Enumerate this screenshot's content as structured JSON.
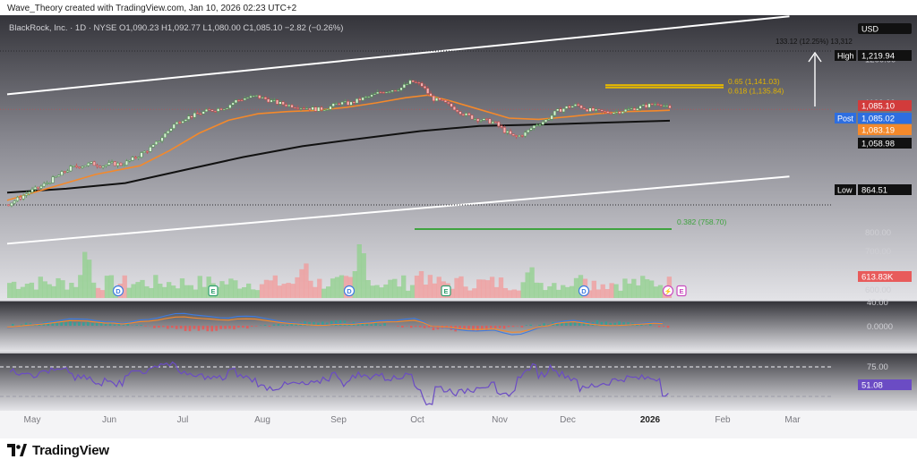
{
  "header": {
    "attribution": "Wave_Theory created with TradingView.com, Jan 10, 2026 02:23 UTC+2"
  },
  "legend": {
    "text": "BlackRock, Inc. · 1D · NYSE  O1,090.23  H1,092.77  L1,080.00  C1,085.10  −2.82 (−0.26%)"
  },
  "currency_label": "USD",
  "brand": {
    "wordmark": "TradingView"
  },
  "colors": {
    "bullish": "#26a69a",
    "bearish": "#ef5350",
    "ma_fast": "#f4892b",
    "ma_slow": "#111111",
    "macd_line": "#3e7be0",
    "signal_line": "#f4892b",
    "rsi": "#6b4cc4",
    "fib_618": "#e5b800",
    "fib_382": "#3fa33f",
    "channel": "#ffffff"
  },
  "chart_data": {
    "type": "candlestick",
    "symbol": "BlackRock, Inc.",
    "interval": "1D",
    "exchange": "NYSE",
    "ohlc_last": {
      "open": 1090.23,
      "high": 1092.77,
      "low": 1080.0,
      "close": 1085.1,
      "change": -2.82,
      "change_pct": -0.26
    },
    "x_ticks": [
      "May",
      "Jun",
      "Jul",
      "Aug",
      "Sep",
      "Oct",
      "Nov",
      "Dec",
      "2026",
      "Feb",
      "Mar"
    ],
    "price_series": {
      "close": [
        [
          0,
          865
        ],
        [
          8,
          880
        ],
        [
          15,
          895
        ],
        [
          22,
          905
        ],
        [
          29,
          920
        ],
        [
          36,
          935
        ],
        [
          43,
          950
        ],
        [
          50,
          955
        ],
        [
          57,
          960
        ],
        [
          64,
          955
        ],
        [
          71,
          960
        ],
        [
          78,
          958
        ],
        [
          85,
          970
        ],
        [
          92,
          985
        ],
        [
          99,
          1000
        ],
        [
          106,
          1025
        ],
        [
          113,
          1050
        ],
        [
          120,
          1065
        ],
        [
          127,
          1072
        ],
        [
          134,
          1080
        ],
        [
          141,
          1085
        ],
        [
          148,
          1090
        ],
        [
          155,
          1105
        ],
        [
          162,
          1112
        ],
        [
          169,
          1115
        ],
        [
          176,
          1108
        ],
        [
          183,
          1100
        ],
        [
          190,
          1095
        ],
        [
          197,
          1092
        ],
        [
          204,
          1088
        ],
        [
          211,
          1085
        ],
        [
          218,
          1090
        ],
        [
          225,
          1100
        ],
        [
          232,
          1098
        ],
        [
          239,
          1108
        ],
        [
          246,
          1115
        ],
        [
          253,
          1125
        ],
        [
          260,
          1130
        ],
        [
          267,
          1135
        ],
        [
          274,
          1150
        ],
        [
          281,
          1140
        ],
        [
          288,
          1110
        ],
        [
          295,
          1102
        ],
        [
          302,
          1090
        ],
        [
          309,
          1075
        ],
        [
          316,
          1065
        ],
        [
          323,
          1060
        ],
        [
          330,
          1055
        ],
        [
          337,
          1035
        ],
        [
          344,
          1020
        ],
        [
          351,
          1030
        ],
        [
          358,
          1050
        ],
        [
          365,
          1060
        ],
        [
          372,
          1080
        ],
        [
          379,
          1090
        ],
        [
          386,
          1095
        ],
        [
          393,
          1085
        ],
        [
          400,
          1080
        ],
        [
          407,
          1078
        ],
        [
          414,
          1080
        ],
        [
          421,
          1085
        ],
        [
          428,
          1090
        ],
        [
          435,
          1095
        ],
        [
          442,
          1100
        ],
        [
          449,
          1085.1
        ]
      ],
      "ma_fast": [
        [
          0,
          875
        ],
        [
          30,
          905
        ],
        [
          60,
          935
        ],
        [
          90,
          955
        ],
        [
          110,
          990
        ],
        [
          130,
          1030
        ],
        [
          150,
          1060
        ],
        [
          170,
          1075
        ],
        [
          190,
          1080
        ],
        [
          210,
          1083
        ],
        [
          230,
          1090
        ],
        [
          250,
          1100
        ],
        [
          270,
          1112
        ],
        [
          285,
          1118
        ],
        [
          300,
          1105
        ],
        [
          320,
          1085
        ],
        [
          340,
          1065
        ],
        [
          360,
          1062
        ],
        [
          380,
          1068
        ],
        [
          400,
          1075
        ],
        [
          420,
          1080
        ],
        [
          440,
          1082
        ],
        [
          449,
          1083.19
        ]
      ],
      "ma_slow": [
        [
          0,
          893
        ],
        [
          40,
          902
        ],
        [
          80,
          915
        ],
        [
          120,
          945
        ],
        [
          160,
          975
        ],
        [
          200,
          1000
        ],
        [
          240,
          1018
        ],
        [
          280,
          1035
        ],
        [
          320,
          1047
        ],
        [
          360,
          1050
        ],
        [
          400,
          1054
        ],
        [
          449,
          1058.98
        ]
      ]
    },
    "channel": {
      "upper": [
        [
          0,
          1120
        ],
        [
          530,
          1300
        ]
      ],
      "lower": [
        [
          0,
          775
        ],
        [
          530,
          930
        ]
      ]
    },
    "key_levels": {
      "high": 1219.94,
      "low": 864.51,
      "last": 1085.1,
      "post": 1085.02,
      "ma_fast_last": 1083.19,
      "ma_slow_last": 1058.98
    },
    "fib_levels": [
      {
        "label": "0.65 (1,141.03)",
        "value": 1141.03
      },
      {
        "label": "0.618 (1,135.84)",
        "value": 1135.84
      },
      {
        "label": "0.382 (758.70)",
        "value": 758.7
      }
    ],
    "measure_label": "133.12 (12.25%) 13,312",
    "price_axis_ticks": [
      1200,
      1100,
      900,
      800,
      700,
      600
    ],
    "volume": {
      "last_label": "613.83K"
    },
    "macd": {
      "top_tick": "40.00",
      "zero_tick": "0.0000"
    },
    "rsi": {
      "upper_tick": "75.00",
      "last": "51.08"
    },
    "event_markers": [
      "D",
      "E",
      "D",
      "D",
      "E",
      "D",
      "E"
    ]
  }
}
